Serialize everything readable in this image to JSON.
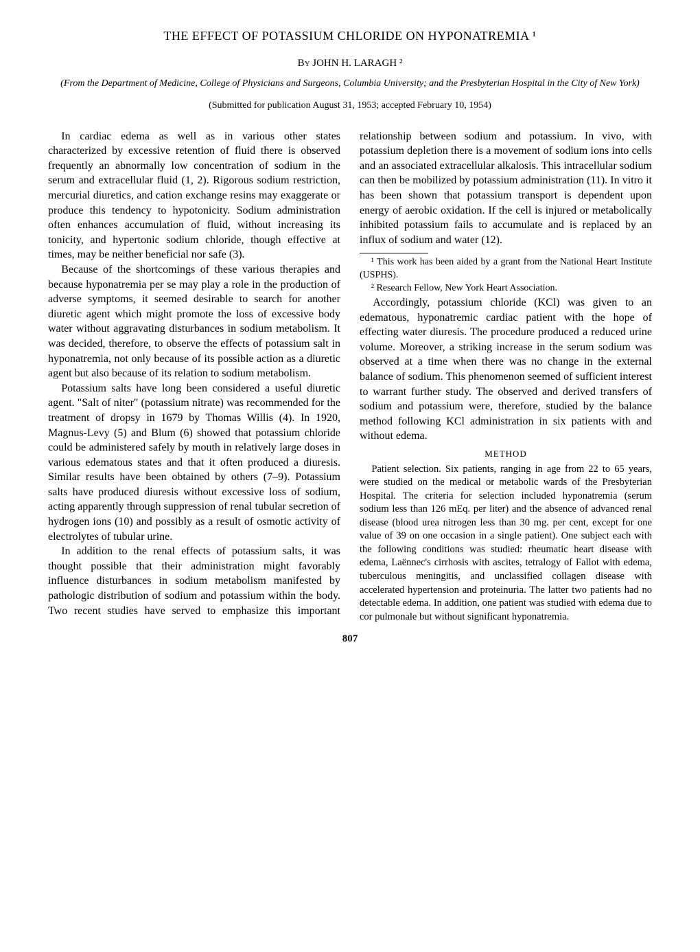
{
  "title": "THE EFFECT OF POTASSIUM CHLORIDE ON HYPONATREMIA ¹",
  "byline_by": "By",
  "author": "JOHN H. LARAGH ²",
  "affiliation": "(From the Department of Medicine, College of Physicians and Surgeons, Columbia University; and the Presbyterian Hospital in the City of New York)",
  "submitted": "(Submitted for publication August 31, 1953; accepted February 10, 1954)",
  "body": {
    "p1": "In cardiac edema as well as in various other states characterized by excessive retention of fluid there is observed frequently an abnormally low concentration of sodium in the serum and extracellular fluid (1, 2). Rigorous sodium restriction, mercurial diuretics, and cation exchange resins may exaggerate or produce this tendency to hypotonicity. Sodium administration often enhances accumulation of fluid, without increasing its tonicity, and hypertonic sodium chloride, though effective at times, may be neither beneficial nor safe (3).",
    "p2": "Because of the shortcomings of these various therapies and because hyponatremia per se may play a role in the production of adverse symptoms, it seemed desirable to search for another diuretic agent which might promote the loss of excessive body water without aggravating disturbances in sodium metabolism. It was decided, therefore, to observe the effects of potassium salt in hyponatremia, not only because of its possible action as a diuretic agent but also because of its relation to sodium metabolism.",
    "p3": "Potassium salts have long been considered a useful diuretic agent. \"Salt of niter\" (potassium nitrate) was recommended for the treatment of dropsy in 1679 by Thomas Willis (4). In 1920, Magnus-Levy (5) and Blum (6) showed that potassium chloride could be administered safely by mouth in relatively large doses in various edematous states and that it often produced a diuresis. Similar results have been obtained by others (7–9). Potassium salts have produced diuresis without excessive loss of sodium, acting apparently through suppression of renal tubular secretion of hydrogen ions (10) and possibly as a result of osmotic activity of electrolytes of tubular urine.",
    "p4": "In addition to the renal effects of potassium salts, it was thought possible that their administration might favorably influence disturbances in sodium metabolism manifested by pathologic distribution of sodium and potassium within the body. Two recent studies have served to emphasize this important relationship between sodium and potassium. In vivo, with potassium depletion there is a movement of sodium ions into cells and an associated extracellular alkalosis. This intracellular sodium can then be mobilized by potassium administration (11). In vitro it has been shown that potassium transport is dependent upon energy of aerobic oxidation. If the cell is injured or metabolically inhibited potassium fails to accumulate and is replaced by an influx of sodium and water (12).",
    "p5": "Accordingly, potassium chloride (KCl) was given to an edematous, hyponatremic cardiac patient with the hope of effecting water diuresis. The procedure produced a reduced urine volume. Moreover, a striking increase in the serum sodium was observed at a time when there was no change in the external balance of sodium. This phenomenon seemed of sufficient interest to warrant further study. The observed and derived transfers of sodium and potassium were, therefore, studied by the balance method following KCl administration in six patients with and without edema."
  },
  "method": {
    "heading": "METHOD",
    "p1": "Patient selection. Six patients, ranging in age from 22 to 65 years, were studied on the medical or metabolic wards of the Presbyterian Hospital. The criteria for selection included hyponatremia (serum sodium less than 126 mEq. per liter) and the absence of advanced renal disease (blood urea nitrogen less than 30 mg. per cent, except for one value of 39 on one occasion in a single patient). One subject each with the following conditions was studied: rheumatic heart disease with edema, Laënnec's cirrhosis with ascites, tetralogy of Fallot with edema, tuberculous meningitis, and unclassified collagen disease with accelerated hypertension and proteinuria. The latter two patients had no detectable edema. In addition, one patient was studied with edema due to cor pulmonale but without significant hyponatremia."
  },
  "footnotes": {
    "f1": "¹ This work has been aided by a grant from the National Heart Institute (USPHS).",
    "f2": "² Research Fellow, New York Heart Association."
  },
  "page_number": "807"
}
